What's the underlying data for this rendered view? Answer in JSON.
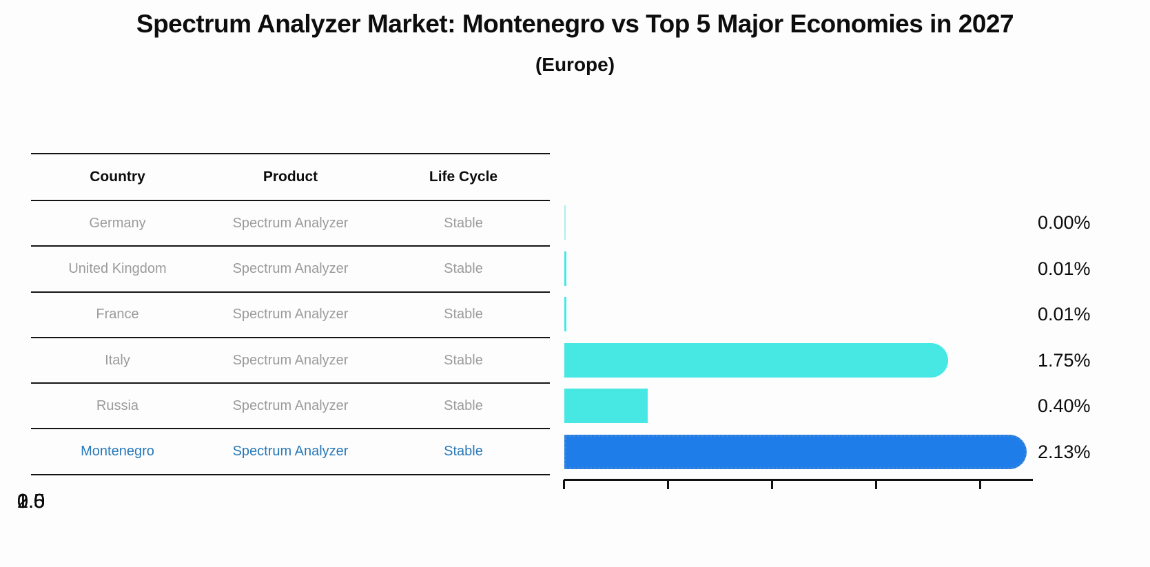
{
  "title": "Spectrum Analyzer Market: Montenegro vs Top 5 Major Economies in 2027",
  "subtitle": "(Europe)",
  "table": {
    "headers": {
      "country": "Country",
      "product": "Product",
      "life_cycle": "Life Cycle"
    },
    "rows": [
      {
        "country": "Germany",
        "product": "Spectrum Analyzer",
        "life_cycle": "Stable"
      },
      {
        "country": "United Kingdom",
        "product": "Spectrum Analyzer",
        "life_cycle": "Stable"
      },
      {
        "country": "France",
        "product": "Spectrum Analyzer",
        "life_cycle": "Stable"
      },
      {
        "country": "Italy",
        "product": "Spectrum Analyzer",
        "life_cycle": "Stable"
      },
      {
        "country": "Russia",
        "product": "Spectrum Analyzer",
        "life_cycle": "Stable"
      },
      {
        "country": "Montenegro",
        "product": "Spectrum Analyzer",
        "life_cycle": "Stable"
      }
    ],
    "highlighted_row": "Montenegro"
  },
  "chart_data": {
    "type": "bar",
    "orientation": "horizontal",
    "categories": [
      "Germany",
      "United Kingdom",
      "France",
      "Italy",
      "Russia",
      "Montenegro"
    ],
    "values": [
      0.0,
      0.01,
      0.01,
      1.75,
      0.4,
      2.13
    ],
    "value_labels": [
      "0.00%",
      "0.01%",
      "0.01%",
      "1.75%",
      "0.40%",
      "2.13%"
    ],
    "highlight_category": "Montenegro",
    "xticks": [
      "0.0",
      "0.5",
      "1.0",
      "1.5",
      "2.0"
    ],
    "xlim": [
      0,
      2.25
    ],
    "grid": false,
    "legend": "none",
    "colors": {
      "bar_default": "#47e8e4",
      "bar_highlight": "#1e7de9",
      "highlight_text": "#2879b9"
    }
  }
}
